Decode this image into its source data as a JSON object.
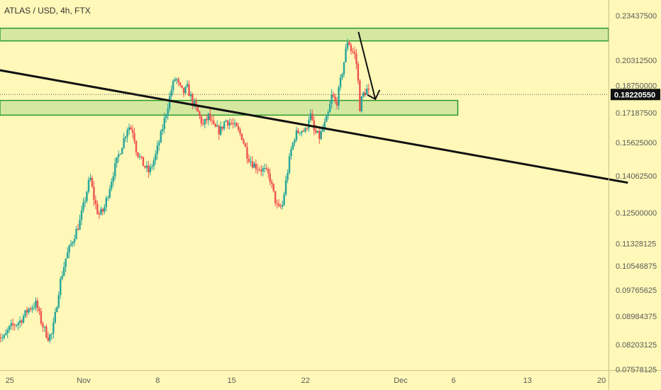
{
  "chart_data": {
    "type": "candlestick",
    "title": "ATLAS / USD, 4h, FTX",
    "xlabel": "",
    "ylabel": "",
    "y_scale": "log",
    "ylim": [
      0.0725,
      0.2448
    ],
    "x_ticks": [
      {
        "label": "25",
        "day": -7
      },
      {
        "label": "Nov",
        "day": 0
      },
      {
        "label": "8",
        "day": 7
      },
      {
        "label": "15",
        "day": 14
      },
      {
        "label": "22",
        "day": 21
      },
      {
        "label": "Dec",
        "day": 30
      },
      {
        "label": "6",
        "day": 35
      },
      {
        "label": "13",
        "day": 42
      },
      {
        "label": "20",
        "day": 49
      }
    ],
    "y_ticks": [
      "0.23437500",
      "0.20312500",
      "0.18750000",
      "0.17187500",
      "0.15625000",
      "0.14062500",
      "0.12500000",
      "0.11328125",
      "0.10546875",
      "0.09765625",
      "0.08984375",
      "0.08203125",
      "0.07578125"
    ],
    "y_tick_values": [
      0.234375,
      0.203125,
      0.1875,
      0.171875,
      0.15625,
      0.140625,
      0.125,
      0.11328125,
      0.10546875,
      0.09765625,
      0.08984375,
      0.08203125,
      0.07578125
    ],
    "current_price": {
      "label": "0.18220550",
      "value": 0.1822055
    },
    "colors": {
      "up": "#26a69a",
      "down": "#ef5350",
      "zone_fill": "#d4e8a0",
      "zone_border": "#2e9a2e",
      "trendline": "#111111",
      "background": "#fff8b8"
    },
    "zones": [
      {
        "from_day": -8.2,
        "to_day": 51.5,
        "low": 0.2162,
        "high": 0.2251
      },
      {
        "from_day": -8.2,
        "to_day": 35.4,
        "low": 0.1706,
        "high": 0.1788
      }
    ],
    "trendline": {
      "start": {
        "day": -8.2,
        "price": 0.1972
      },
      "end": {
        "day": 51.5,
        "price": 0.1375
      }
    },
    "projection_arrow": [
      {
        "day": 26.0,
        "price": 0.2225
      },
      {
        "day": 27.6,
        "price": 0.1795
      }
    ],
    "price_path": [
      [
        -8.2,
        0.085
      ],
      [
        -7.6,
        0.0835
      ],
      [
        -7.0,
        0.0865
      ],
      [
        -6.0,
        0.0885
      ],
      [
        -5.2,
        0.092
      ],
      [
        -4.5,
        0.0935
      ],
      [
        -4.0,
        0.088
      ],
      [
        -3.4,
        0.084
      ],
      [
        -3.0,
        0.0848
      ],
      [
        -2.7,
        0.09
      ],
      [
        -2.3,
        0.099
      ],
      [
        -1.7,
        0.108
      ],
      [
        -1.0,
        0.115
      ],
      [
        -0.4,
        0.121
      ],
      [
        0.1,
        0.13
      ],
      [
        0.6,
        0.14
      ],
      [
        1.0,
        0.13
      ],
      [
        1.4,
        0.124
      ],
      [
        1.9,
        0.126
      ],
      [
        2.3,
        0.133
      ],
      [
        2.8,
        0.142
      ],
      [
        3.3,
        0.15
      ],
      [
        3.8,
        0.158
      ],
      [
        4.2,
        0.165
      ],
      [
        4.7,
        0.162
      ],
      [
        5.0,
        0.152
      ],
      [
        5.6,
        0.146
      ],
      [
        6.2,
        0.142
      ],
      [
        6.8,
        0.15
      ],
      [
        7.3,
        0.16
      ],
      [
        7.8,
        0.172
      ],
      [
        8.3,
        0.185
      ],
      [
        8.7,
        0.193
      ],
      [
        9.0,
        0.187
      ],
      [
        9.4,
        0.183
      ],
      [
        9.8,
        0.186
      ],
      [
        10.3,
        0.178
      ],
      [
        10.8,
        0.172
      ],
      [
        11.3,
        0.165
      ],
      [
        11.8,
        0.17
      ],
      [
        12.3,
        0.164
      ],
      [
        12.9,
        0.162
      ],
      [
        13.4,
        0.168
      ],
      [
        14.0,
        0.166
      ],
      [
        14.5,
        0.163
      ],
      [
        15.0,
        0.159
      ],
      [
        15.5,
        0.15
      ],
      [
        16.0,
        0.146
      ],
      [
        16.6,
        0.144
      ],
      [
        17.1,
        0.143
      ],
      [
        17.6,
        0.14
      ],
      [
        18.0,
        0.132
      ],
      [
        18.4,
        0.126
      ],
      [
        18.8,
        0.128
      ],
      [
        19.2,
        0.14
      ],
      [
        19.6,
        0.152
      ],
      [
        20.0,
        0.16
      ],
      [
        20.5,
        0.163
      ],
      [
        21.0,
        0.162
      ],
      [
        21.4,
        0.172
      ],
      [
        21.8,
        0.162
      ],
      [
        22.3,
        0.159
      ],
      [
        22.7,
        0.164
      ],
      [
        23.1,
        0.17
      ],
      [
        23.5,
        0.182
      ],
      [
        23.9,
        0.176
      ],
      [
        24.3,
        0.19
      ],
      [
        24.7,
        0.205
      ],
      [
        25.0,
        0.218
      ],
      [
        25.3,
        0.21
      ],
      [
        25.6,
        0.208
      ],
      [
        25.9,
        0.198
      ],
      [
        26.1,
        0.174
      ],
      [
        26.4,
        0.182
      ],
      [
        26.8,
        0.185
      ],
      [
        27.1,
        0.1822
      ]
    ]
  }
}
